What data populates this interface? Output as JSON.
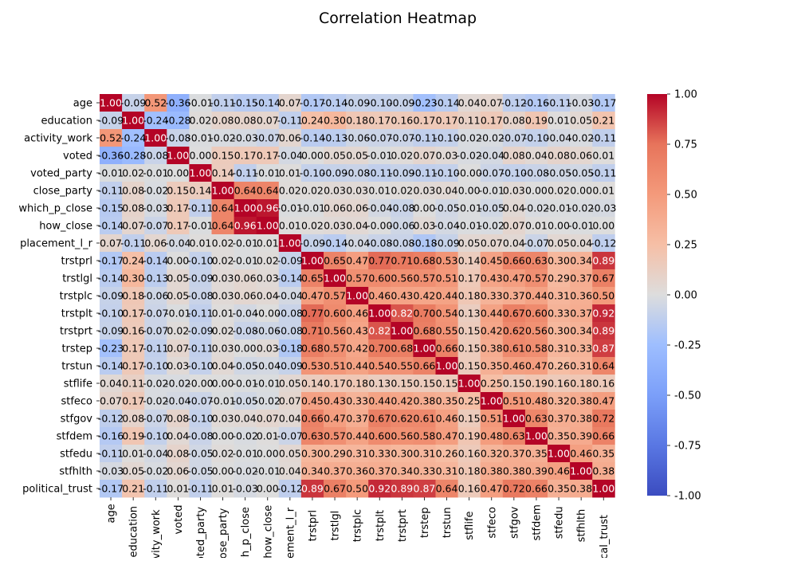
{
  "chart_data": {
    "type": "heatmap",
    "title": "Correlation Heatmap",
    "variables": [
      "age",
      "education",
      "activity_work",
      "voted",
      "voted_party",
      "close_party",
      "which_p_close",
      "how_close",
      "placement_l_r",
      "trstprl",
      "trstlgl",
      "trstplc",
      "trstplt",
      "trstprt",
      "trstep",
      "trstun",
      "stflife",
      "stfeco",
      "stfgov",
      "stfdem",
      "stfedu",
      "stfhlth",
      "political_trust"
    ],
    "x_tick_labels": [
      "age",
      "education",
      "activity_work",
      "voted",
      "voted_party",
      "close_party",
      "which_p_close",
      "how_close",
      "placement_l_r",
      "trstprl",
      "trstlgl",
      "trstplc",
      "trstplt",
      "trstprt",
      "trstep",
      "trstun",
      "stflife",
      "stfeco",
      "stfgov",
      "stfdem",
      "stfedu",
      "stfhlth",
      "political_trust"
    ],
    "matrix": [
      [
        1.0,
        -0.09,
        0.52,
        -0.36,
        -0.01,
        -0.11,
        -0.15,
        -0.14,
        0.07,
        -0.17,
        -0.14,
        -0.09,
        -0.1,
        -0.09,
        -0.23,
        -0.14,
        0.04,
        0.07,
        -0.12,
        -0.16,
        -0.11,
        -0.03,
        -0.17
      ],
      [
        -0.09,
        1.0,
        -0.24,
        -0.28,
        0.02,
        0.08,
        0.08,
        0.07,
        -0.11,
        0.24,
        0.3,
        0.18,
        0.17,
        0.16,
        0.17,
        0.17,
        0.11,
        0.17,
        0.08,
        0.19,
        0.01,
        0.05,
        0.21
      ],
      [
        0.52,
        -0.24,
        1.0,
        -0.08,
        -0.01,
        -0.02,
        -0.03,
        -0.07,
        0.06,
        -0.14,
        -0.13,
        -0.06,
        -0.07,
        -0.07,
        -0.11,
        -0.1,
        -0.02,
        -0.02,
        -0.07,
        -0.1,
        -0.04,
        -0.02,
        -0.11
      ],
      [
        -0.36,
        -0.28,
        -0.08,
        1.0,
        0.0,
        0.15,
        0.17,
        0.17,
        -0.04,
        0.0,
        0.05,
        0.05,
        -0.01,
        0.02,
        0.07,
        0.03,
        -0.02,
        -0.04,
        0.08,
        0.04,
        0.08,
        0.06,
        0.01
      ],
      [
        -0.01,
        0.02,
        -0.01,
        0.0,
        1.0,
        0.14,
        -0.11,
        -0.01,
        0.01,
        -0.1,
        -0.09,
        -0.08,
        -0.11,
        -0.09,
        -0.11,
        -0.1,
        -0.0,
        -0.07,
        -0.1,
        -0.08,
        -0.05,
        -0.05,
        -0.11
      ],
      [
        -0.11,
        0.08,
        -0.02,
        0.15,
        0.14,
        1.0,
        0.64,
        0.64,
        0.02,
        0.02,
        0.03,
        0.03,
        0.01,
        0.02,
        0.03,
        0.04,
        0.0,
        -0.01,
        0.03,
        0.0,
        0.02,
        0.0,
        0.01
      ],
      [
        -0.15,
        0.08,
        -0.03,
        0.17,
        -0.11,
        0.64,
        1.0,
        0.96,
        -0.01,
        -0.01,
        0.06,
        0.06,
        -0.04,
        -0.08,
        0.0,
        -0.05,
        -0.01,
        -0.05,
        0.04,
        -0.02,
        -0.01,
        -0.02,
        -0.03
      ],
      [
        -0.14,
        0.07,
        -0.07,
        0.17,
        -0.01,
        0.64,
        0.96,
        1.0,
        0.01,
        0.02,
        0.03,
        0.04,
        -0.0,
        -0.06,
        0.03,
        -0.04,
        -0.01,
        -0.02,
        0.07,
        0.01,
        0.0,
        -0.01,
        0.0
      ],
      [
        0.07,
        -0.11,
        0.06,
        -0.04,
        0.01,
        0.02,
        -0.01,
        0.01,
        1.0,
        -0.09,
        -0.14,
        -0.04,
        -0.08,
        -0.08,
        -0.18,
        -0.09,
        0.05,
        0.07,
        0.04,
        -0.07,
        0.05,
        0.04,
        -0.12
      ],
      [
        -0.17,
        0.24,
        -0.14,
        0.0,
        -0.1,
        0.02,
        -0.01,
        0.02,
        -0.09,
        1.0,
        0.65,
        0.47,
        0.77,
        0.71,
        0.68,
        0.53,
        0.14,
        0.45,
        0.66,
        0.63,
        0.3,
        0.34,
        0.89
      ],
      [
        -0.14,
        0.3,
        -0.13,
        0.05,
        -0.09,
        0.03,
        0.06,
        0.03,
        -0.14,
        0.65,
        1.0,
        0.57,
        0.6,
        0.56,
        0.57,
        0.51,
        0.17,
        0.43,
        0.47,
        0.57,
        0.29,
        0.37,
        0.67
      ],
      [
        -0.09,
        0.18,
        -0.06,
        0.05,
        -0.08,
        0.03,
        0.06,
        0.04,
        -0.04,
        0.47,
        0.57,
        1.0,
        0.46,
        0.43,
        0.42,
        0.44,
        0.18,
        0.33,
        0.37,
        0.44,
        0.31,
        0.36,
        0.5
      ],
      [
        -0.1,
        0.17,
        -0.07,
        -0.01,
        -0.11,
        0.01,
        -0.04,
        -0.0,
        -0.08,
        0.77,
        0.6,
        0.46,
        1.0,
        0.82,
        0.7,
        0.54,
        0.13,
        0.44,
        0.67,
        0.6,
        0.33,
        0.37,
        0.92
      ],
      [
        -0.09,
        0.16,
        -0.07,
        0.02,
        -0.09,
        0.02,
        -0.08,
        -0.06,
        -0.08,
        0.71,
        0.56,
        0.43,
        0.82,
        1.0,
        0.68,
        0.55,
        0.15,
        0.42,
        0.62,
        0.56,
        0.3,
        0.34,
        0.89
      ],
      [
        -0.23,
        0.17,
        -0.11,
        0.07,
        -0.11,
        0.03,
        0.0,
        0.03,
        -0.18,
        0.68,
        0.57,
        0.42,
        0.7,
        0.68,
        1.0,
        0.66,
        0.15,
        0.38,
        0.61,
        0.58,
        0.31,
        0.33,
        0.87
      ],
      [
        -0.14,
        0.17,
        -0.1,
        0.03,
        -0.1,
        0.04,
        -0.05,
        -0.04,
        -0.09,
        0.53,
        0.51,
        0.44,
        0.54,
        0.55,
        0.66,
        1.0,
        0.15,
        0.35,
        0.46,
        0.47,
        0.26,
        0.31,
        0.64
      ],
      [
        0.04,
        0.11,
        -0.02,
        -0.02,
        -0.0,
        0.0,
        -0.01,
        -0.01,
        0.05,
        0.14,
        0.17,
        0.18,
        0.13,
        0.15,
        0.15,
        0.15,
        1.0,
        0.25,
        0.15,
        0.19,
        0.16,
        0.18,
        0.16
      ],
      [
        0.07,
        0.17,
        -0.02,
        -0.04,
        -0.07,
        -0.01,
        -0.05,
        -0.02,
        0.07,
        0.45,
        0.43,
        0.33,
        0.44,
        0.42,
        0.38,
        0.35,
        0.25,
        1.0,
        0.51,
        0.48,
        0.32,
        0.38,
        0.47
      ],
      [
        -0.12,
        0.08,
        -0.07,
        0.08,
        -0.1,
        0.03,
        0.04,
        0.07,
        0.04,
        0.66,
        0.47,
        0.37,
        0.67,
        0.62,
        0.61,
        0.46,
        0.15,
        0.51,
        1.0,
        0.63,
        0.37,
        0.38,
        0.72
      ],
      [
        -0.16,
        0.19,
        -0.1,
        0.04,
        -0.08,
        0.0,
        -0.02,
        0.01,
        -0.07,
        0.63,
        0.57,
        0.44,
        0.6,
        0.56,
        0.58,
        0.47,
        0.19,
        0.48,
        0.63,
        1.0,
        0.35,
        0.39,
        0.66
      ],
      [
        -0.11,
        0.01,
        -0.04,
        0.08,
        -0.05,
        0.02,
        -0.01,
        0.0,
        0.05,
        0.3,
        0.29,
        0.31,
        0.33,
        0.3,
        0.31,
        0.26,
        0.16,
        0.32,
        0.37,
        0.35,
        1.0,
        0.46,
        0.35
      ],
      [
        -0.03,
        0.05,
        -0.02,
        0.06,
        -0.05,
        0.0,
        -0.02,
        -0.01,
        0.04,
        0.34,
        0.37,
        0.36,
        0.37,
        0.34,
        0.33,
        0.31,
        0.18,
        0.38,
        0.38,
        0.39,
        0.46,
        1.0,
        0.38
      ],
      [
        -0.17,
        0.21,
        -0.11,
        0.01,
        -0.11,
        0.01,
        -0.03,
        0.0,
        -0.12,
        0.89,
        0.67,
        0.5,
        0.92,
        0.89,
        0.87,
        0.64,
        0.16,
        0.47,
        0.72,
        0.66,
        0.35,
        0.38,
        1.0
      ]
    ],
    "colorbar": {
      "range": [
        -1.0,
        1.0
      ],
      "ticks": [
        "1.00",
        "0.75",
        "0.50",
        "0.25",
        "0.00",
        "-0.25",
        "-0.50",
        "-0.75",
        "-1.00"
      ],
      "colormap": "coolwarm",
      "low_color": "#3b4cc0",
      "mid_color": "#dddddd",
      "high_color": "#b40426"
    },
    "annotation_format": "2 decimals",
    "grid": false
  }
}
